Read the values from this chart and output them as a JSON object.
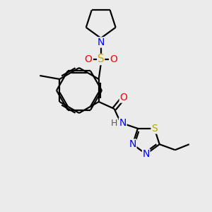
{
  "bg_color": "#ebebeb",
  "bond_color": "#000000",
  "atom_colors": {
    "N": "#0000ff",
    "O": "#ff0000",
    "S_sulfonyl": "#ccaa00",
    "S_thiadiazole": "#aaaa00",
    "H": "#555555",
    "C": "#000000"
  },
  "figsize": [
    3.0,
    3.0
  ],
  "dpi": 100
}
